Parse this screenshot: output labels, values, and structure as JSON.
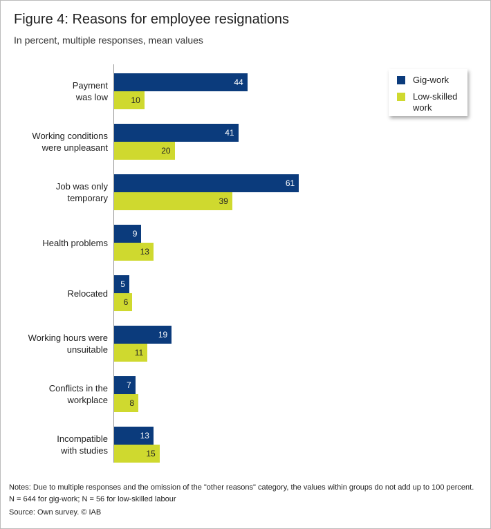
{
  "chart_data": {
    "type": "bar",
    "orientation": "horizontal",
    "title": "Figure 4: Reasons for employee resignations",
    "subtitle": "In percent, multiple responses, mean values",
    "categories": [
      "Payment\nwas low",
      "Working conditions\nwere unpleasant",
      "Job was only\ntemporary",
      "Health problems",
      "Relocated",
      "Working hours were\nunsuitable",
      "Conflicts in the\nworkplace",
      "Incompatible\nwith studies"
    ],
    "series": [
      {
        "name": "Gig-work",
        "color": "#0b3b7c",
        "values": [
          44,
          41,
          61,
          9,
          5,
          19,
          7,
          13
        ]
      },
      {
        "name": "Low-skilled\nwork",
        "color": "#cfd92f",
        "values": [
          10,
          20,
          39,
          13,
          6,
          11,
          8,
          15
        ]
      }
    ],
    "xlim": [
      0,
      100
    ],
    "legend_position": "upper right",
    "notes": [
      "Notes: Due to multiple responses and the omission of the \"other reasons\" category, the values within groups do not add up to 100 percent.",
      "N = 644 for gig-work; N = 56 for low-skilled labour"
    ],
    "source": "Source: Own survey.  © IAB"
  }
}
